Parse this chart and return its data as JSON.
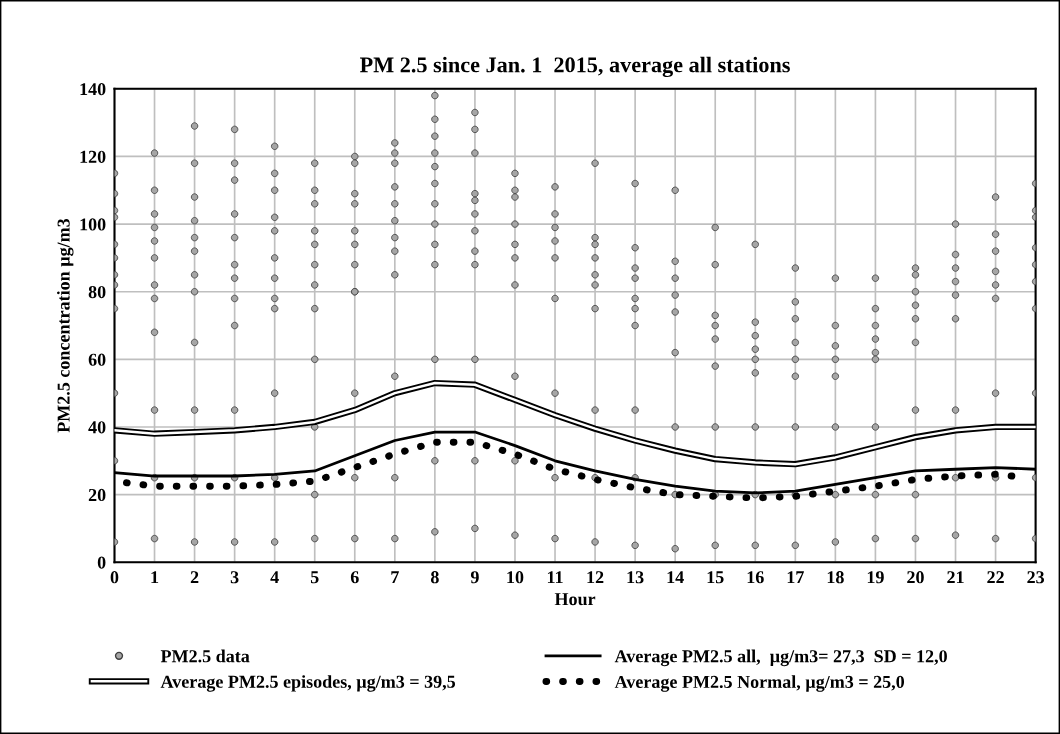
{
  "chart_data": {
    "type": "scatter",
    "title": "PM 2.5 since Jan. 1  2015, average all stations",
    "xlabel": "Hour",
    "ylabel": "PM2.5 concentration µg/m3",
    "xlim": [
      0,
      23
    ],
    "xticks": [
      0,
      1,
      2,
      3,
      4,
      5,
      6,
      7,
      8,
      9,
      10,
      11,
      12,
      13,
      14,
      15,
      16,
      17,
      18,
      19,
      20,
      21,
      22,
      23
    ],
    "ylim": [
      0,
      140
    ],
    "yticks": [
      0,
      20,
      40,
      60,
      80,
      100,
      120,
      140
    ],
    "grid": true,
    "legend": "bottom",
    "marker": "circle",
    "series": [
      {
        "name": "PM2.5 data",
        "color": "#a6a6a6",
        "x": [
          0,
          0,
          0,
          0,
          0,
          0,
          0,
          0,
          0,
          0,
          0,
          0,
          1,
          1,
          1,
          1,
          1,
          1,
          1,
          1,
          1,
          1,
          1,
          1,
          2,
          2,
          2,
          2,
          2,
          2,
          2,
          2,
          2,
          2,
          2,
          2,
          3,
          3,
          3,
          3,
          3,
          3,
          3,
          3,
          3,
          3,
          3,
          3,
          4,
          4,
          4,
          4,
          4,
          4,
          4,
          4,
          4,
          4,
          4,
          4,
          5,
          5,
          5,
          5,
          5,
          5,
          5,
          5,
          5,
          5,
          5,
          5,
          6,
          6,
          6,
          6,
          6,
          6,
          6,
          6,
          6,
          6,
          6,
          6,
          7,
          7,
          7,
          7,
          7,
          7,
          7,
          7,
          7,
          7,
          7,
          7,
          8,
          8,
          8,
          8,
          8,
          8,
          8,
          8,
          8,
          8,
          8,
          8,
          8,
          9,
          9,
          9,
          9,
          9,
          9,
          9,
          9,
          9,
          9,
          9,
          9,
          10,
          10,
          10,
          10,
          10,
          10,
          10,
          10,
          10,
          10,
          11,
          11,
          11,
          11,
          11,
          11,
          11,
          11,
          11,
          12,
          12,
          12,
          12,
          12,
          12,
          12,
          12,
          12,
          12,
          13,
          13,
          13,
          13,
          13,
          13,
          13,
          13,
          13,
          13,
          14,
          14,
          14,
          14,
          14,
          14,
          14,
          14,
          14,
          15,
          15,
          15,
          15,
          15,
          15,
          15,
          15,
          15,
          16,
          16,
          16,
          16,
          16,
          16,
          16,
          16,
          16,
          17,
          17,
          17,
          17,
          17,
          17,
          17,
          17,
          17,
          18,
          18,
          18,
          18,
          18,
          18,
          18,
          18,
          19,
          19,
          19,
          19,
          19,
          19,
          19,
          19,
          19,
          20,
          20,
          20,
          20,
          20,
          20,
          20,
          20,
          20,
          21,
          21,
          21,
          21,
          21,
          21,
          21,
          21,
          21,
          22,
          22,
          22,
          22,
          22,
          22,
          22,
          22,
          22,
          23,
          23,
          23,
          23,
          23,
          23,
          23,
          23,
          23,
          23
        ],
        "values": [
          115,
          109,
          104,
          102,
          94,
          90,
          85,
          82,
          75,
          50,
          30,
          6,
          121,
          110,
          103,
          99,
          95,
          90,
          82,
          78,
          68,
          45,
          25,
          7,
          129,
          118,
          108,
          101,
          96,
          92,
          85,
          80,
          65,
          45,
          25,
          6,
          128,
          118,
          113,
          103,
          96,
          88,
          84,
          78,
          70,
          45,
          25,
          6,
          123,
          115,
          110,
          102,
          98,
          90,
          84,
          78,
          75,
          50,
          25,
          6,
          118,
          110,
          106,
          98,
          94,
          88,
          82,
          75,
          60,
          40,
          20,
          7,
          120,
          118,
          109,
          106,
          98,
          94,
          88,
          80,
          80,
          50,
          25,
          7,
          124,
          121,
          118,
          111,
          106,
          101,
          96,
          92,
          85,
          55,
          25,
          7,
          138,
          131,
          126,
          121,
          117,
          112,
          106,
          100,
          94,
          88,
          60,
          30,
          9,
          133,
          128,
          121,
          109,
          107,
          103,
          98,
          92,
          88,
          60,
          30,
          10,
          115,
          110,
          108,
          100,
          94,
          90,
          82,
          55,
          30,
          8,
          111,
          103,
          99,
          95,
          90,
          78,
          50,
          25,
          7,
          118,
          96,
          94,
          90,
          85,
          82,
          75,
          45,
          25,
          6,
          112,
          93,
          87,
          84,
          78,
          75,
          70,
          45,
          25,
          5,
          110,
          89,
          84,
          79,
          74,
          62,
          40,
          20,
          4,
          99,
          88,
          73,
          70,
          66,
          58,
          40,
          20,
          5,
          94,
          71,
          67,
          63,
          60,
          56,
          40,
          20,
          5,
          87,
          77,
          72,
          65,
          60,
          55,
          40,
          20,
          5,
          84,
          70,
          64,
          60,
          55,
          40,
          20,
          6,
          84,
          75,
          70,
          66,
          62,
          60,
          40,
          20,
          7,
          87,
          85,
          80,
          76,
          72,
          65,
          45,
          20,
          7,
          100,
          91,
          87,
          83,
          79,
          72,
          45,
          25,
          8,
          108,
          97,
          92,
          86,
          82,
          78,
          50,
          25,
          7,
          112,
          104,
          102,
          93,
          88,
          83,
          75,
          50,
          25,
          7
        ]
      },
      {
        "name": "Average PM2.5 episodes, µg/m3 = 39,5",
        "type": "line",
        "color": "#000000",
        "line_style": "solid",
        "marker": "none",
        "x": [
          0,
          1,
          2,
          3,
          4,
          5,
          6,
          7,
          8,
          9,
          10,
          11,
          12,
          13,
          14,
          15,
          16,
          17,
          18,
          19,
          20,
          21,
          22,
          23
        ],
        "values": [
          39,
          38,
          38.5,
          39,
          40,
          41.5,
          45,
          50,
          53,
          52.5,
          48,
          43.5,
          39.5,
          36,
          33,
          30.5,
          29.5,
          29,
          31,
          34,
          37,
          39,
          40,
          40
        ]
      },
      {
        "name": "Average PM2.5 all,  µg/m3= 27,3  SD = 12,0",
        "type": "line",
        "color": "#000000",
        "line_style": "solid",
        "marker": "none",
        "x": [
          0,
          1,
          2,
          3,
          4,
          5,
          6,
          7,
          8,
          9,
          10,
          11,
          12,
          13,
          14,
          15,
          16,
          17,
          18,
          19,
          20,
          21,
          22,
          23
        ],
        "values": [
          26.5,
          25.5,
          25.5,
          25.5,
          26,
          27,
          31.5,
          36,
          38.5,
          38.5,
          34.5,
          30,
          27,
          24.5,
          22.5,
          21,
          20.5,
          21,
          23,
          25,
          27,
          27.5,
          28,
          27.5
        ]
      },
      {
        "name": "Average PM2.5 Normal, µg/m3 = 25,0",
        "type": "line",
        "color": "#000000",
        "line_style": "dotted",
        "marker": "none",
        "x": [
          0.3,
          1,
          2,
          3,
          4,
          5,
          6,
          7,
          8,
          9,
          10,
          11,
          12,
          13,
          14,
          15,
          16,
          17,
          18,
          19,
          20,
          21,
          22,
          22.8
        ],
        "values": [
          23.5,
          22.5,
          22.5,
          22.5,
          23,
          24,
          28,
          32,
          35.5,
          35.5,
          32,
          27.5,
          24.5,
          22,
          20,
          19.5,
          19,
          19.5,
          21,
          22.5,
          24.5,
          25.5,
          26,
          25
        ]
      }
    ]
  }
}
